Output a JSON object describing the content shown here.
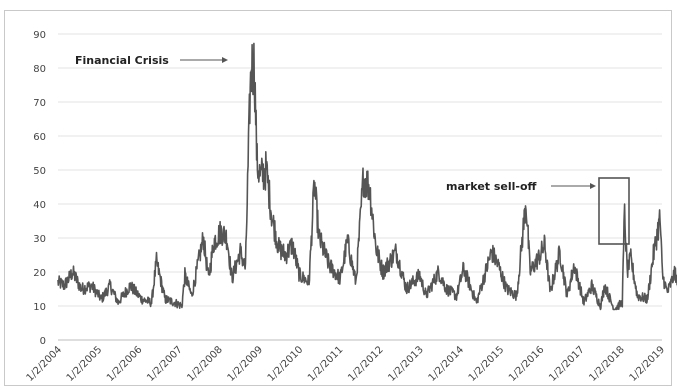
{
  "chart_data": {
    "type": "line",
    "title": "",
    "xlabel": "",
    "ylabel": "",
    "ylim": [
      0,
      90
    ],
    "yticks": [
      0,
      10,
      20,
      30,
      40,
      50,
      60,
      70,
      80,
      90
    ],
    "xticks": [
      "1/2/2004",
      "1/2/2005",
      "1/2/2006",
      "1/2/2007",
      "1/2/2008",
      "1/2/2009",
      "1/2/2010",
      "1/2/2011",
      "1/2/2012",
      "1/2/2013",
      "1/2/2014",
      "1/2/2015",
      "1/2/2016",
      "1/2/2017",
      "1/2/2018",
      "1/2/2019"
    ],
    "grid": true,
    "legend": "none",
    "series": [
      {
        "color": "#555555",
        "points": [
          [
            "2004-01-02",
            17
          ],
          [
            "2004-03-01",
            16
          ],
          [
            "2004-05-15",
            20
          ],
          [
            "2004-08-01",
            15
          ],
          [
            "2004-11-01",
            16
          ],
          [
            "2005-02-01",
            12
          ],
          [
            "2005-04-20",
            16
          ],
          [
            "2005-07-01",
            11
          ],
          [
            "2005-10-20",
            16
          ],
          [
            "2006-02-01",
            12
          ],
          [
            "2006-05-01",
            11
          ],
          [
            "2006-06-15",
            23
          ],
          [
            "2006-09-01",
            12
          ],
          [
            "2006-12-01",
            11
          ],
          [
            "2007-02-01",
            10
          ],
          [
            "2007-02-28",
            19
          ],
          [
            "2007-05-01",
            13
          ],
          [
            "2007-08-15",
            30
          ],
          [
            "2007-10-01",
            18
          ],
          [
            "2007-11-20",
            29
          ],
          [
            "2008-01-22",
            32
          ],
          [
            "2008-03-17",
            30
          ],
          [
            "2008-05-01",
            18
          ],
          [
            "2008-07-15",
            26
          ],
          [
            "2008-09-01",
            21
          ],
          [
            "2008-10-10",
            70
          ],
          [
            "2008-10-24",
            80
          ],
          [
            "2008-11-20",
            81
          ],
          [
            "2008-12-15",
            52
          ],
          [
            "2009-01-15",
            48
          ],
          [
            "2009-03-09",
            50
          ],
          [
            "2009-05-01",
            36
          ],
          [
            "2009-07-01",
            27
          ],
          [
            "2009-09-01",
            25
          ],
          [
            "2009-11-01",
            28
          ],
          [
            "2010-01-05",
            19
          ],
          [
            "2010-04-01",
            17
          ],
          [
            "2010-05-20",
            46
          ],
          [
            "2010-07-01",
            30
          ],
          [
            "2010-10-01",
            22
          ],
          [
            "2011-01-10",
            18
          ],
          [
            "2011-03-16",
            29
          ],
          [
            "2011-06-01",
            17
          ],
          [
            "2011-08-08",
            48
          ],
          [
            "2011-10-03",
            45
          ],
          [
            "2011-12-01",
            27
          ],
          [
            "2012-02-01",
            20
          ],
          [
            "2012-06-01",
            26
          ],
          [
            "2012-09-01",
            15
          ],
          [
            "2012-12-31",
            19
          ],
          [
            "2013-03-01",
            13
          ],
          [
            "2013-06-20",
            20
          ],
          [
            "2013-09-01",
            15
          ],
          [
            "2013-12-01",
            13
          ],
          [
            "2014-02-03",
            21
          ],
          [
            "2014-06-01",
            11
          ],
          [
            "2014-10-15",
            26
          ],
          [
            "2014-12-15",
            22
          ],
          [
            "2015-03-01",
            15
          ],
          [
            "2015-06-01",
            13
          ],
          [
            "2015-08-24",
            41
          ],
          [
            "2015-10-01",
            20
          ],
          [
            "2015-12-15",
            24
          ],
          [
            "2016-02-11",
            28
          ],
          [
            "2016-04-01",
            14
          ],
          [
            "2016-06-27",
            26
          ],
          [
            "2016-09-01",
            13
          ],
          [
            "2016-11-04",
            22
          ],
          [
            "2017-02-01",
            11
          ],
          [
            "2017-04-13",
            16
          ],
          [
            "2017-07-01",
            10
          ],
          [
            "2017-08-11",
            16
          ],
          [
            "2017-11-01",
            9
          ],
          [
            "2018-01-15",
            11
          ],
          [
            "2018-02-05",
            37
          ],
          [
            "2018-03-01",
            20
          ],
          [
            "2018-04-02",
            24
          ],
          [
            "2018-06-01",
            13
          ],
          [
            "2018-09-01",
            12
          ],
          [
            "2018-10-25",
            25
          ],
          [
            "2018-12-24",
            36
          ],
          [
            "2019-01-15",
            19
          ],
          [
            "2019-03-01",
            14
          ],
          [
            "2019-05-13",
            20
          ],
          [
            "2019-06-01",
            16
          ],
          [
            "2019-06-30",
            13
          ]
        ]
      }
    ],
    "annotations": [
      {
        "text": "Financial Crisis"
      },
      {
        "text": "market sell-off"
      }
    ]
  }
}
